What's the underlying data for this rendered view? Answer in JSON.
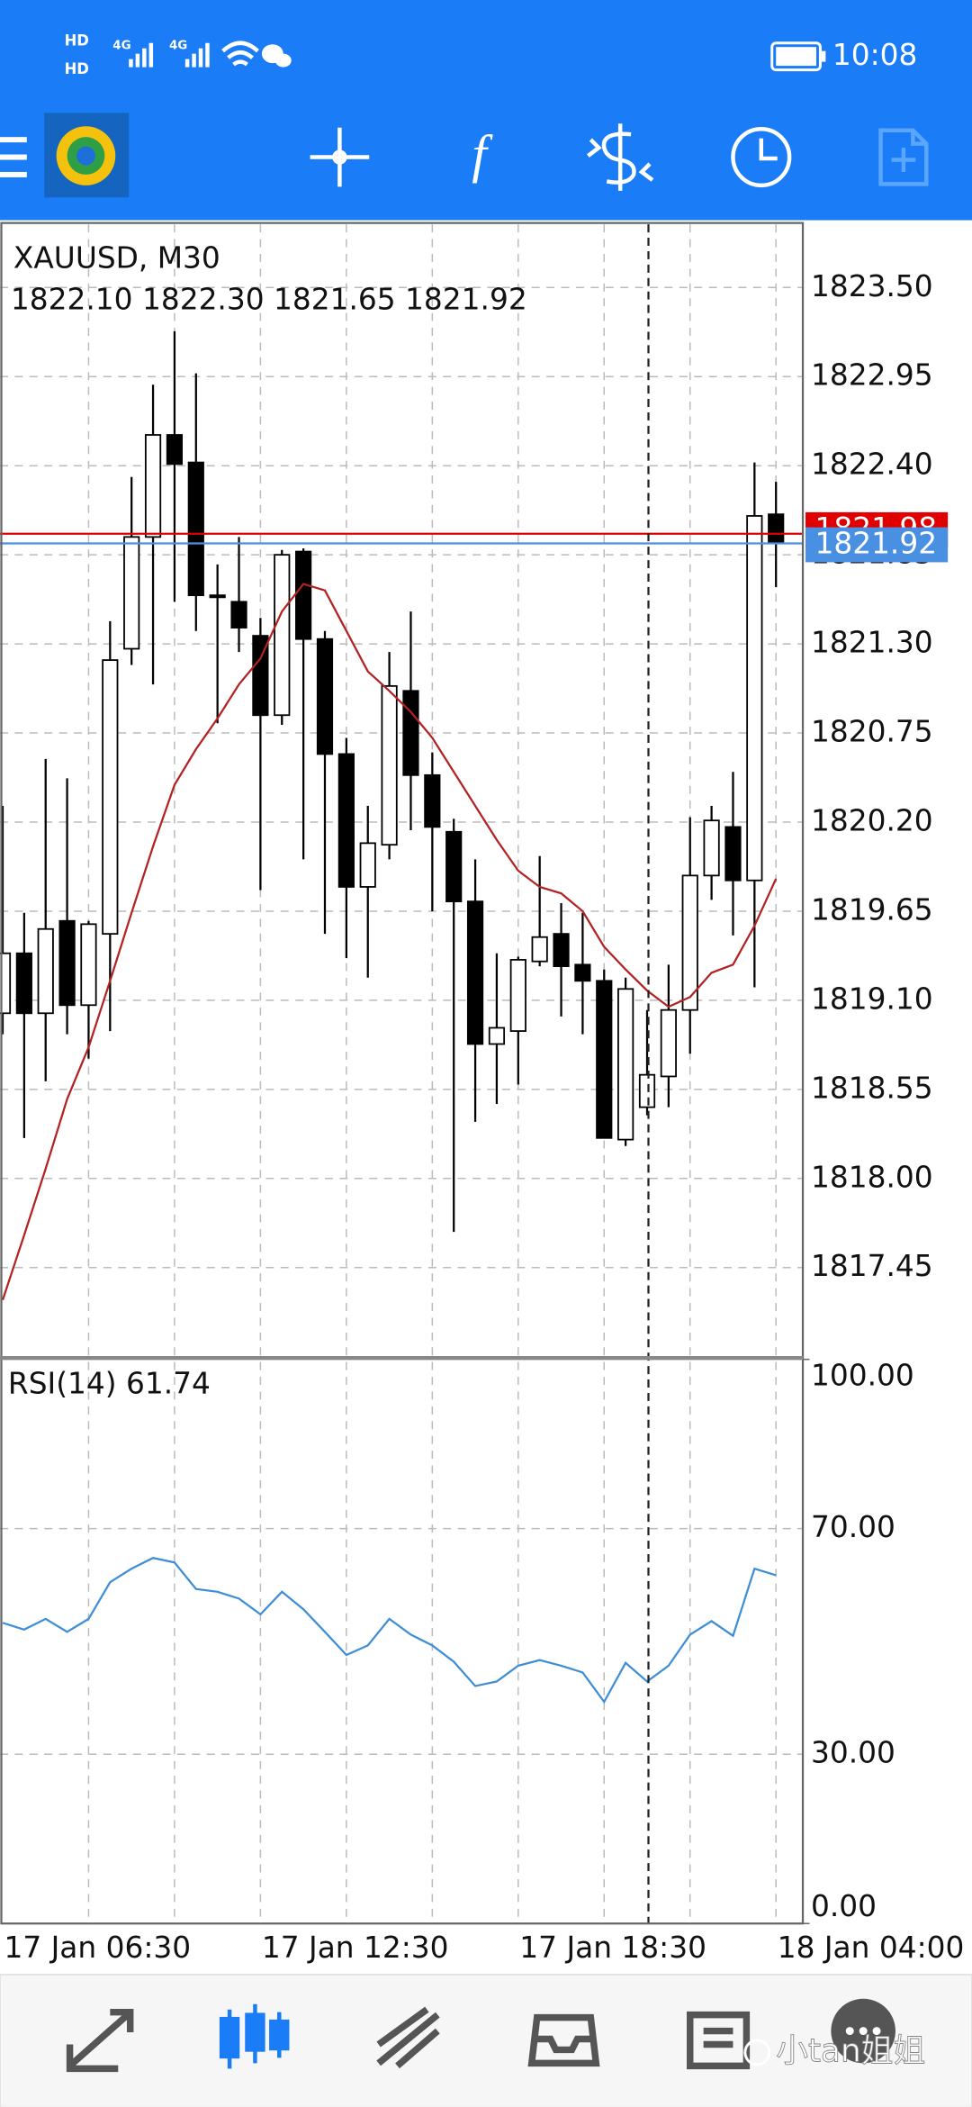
{
  "status_bar": {
    "sim1": "HD",
    "sim2": "HD",
    "net1": "4G",
    "net2": "4G",
    "time": "10:08"
  },
  "toolbar": {
    "indicators_icon": "f"
  },
  "chart_data": [
    {
      "type": "candlestick",
      "title": "XAUUSD, M30",
      "ohlc_text": "1822.10 1822.30 1821.65 1821.92",
      "categories": [
        "17 Jan 06:30",
        null,
        null,
        null,
        null,
        null,
        null,
        null,
        null,
        null,
        null,
        null,
        "17 Jan 12:30",
        null,
        null,
        null,
        null,
        null,
        null,
        null,
        null,
        null,
        null,
        null,
        "17 Jan 18:30",
        null,
        null,
        null,
        null,
        null,
        null,
        null,
        null,
        null,
        null,
        null,
        "18 Jan 04:00"
      ],
      "open": [
        1819.02,
        1819.39,
        1819.02,
        1819.59,
        1819.07,
        1819.51,
        1821.27,
        1821.96,
        1822.59,
        1822.42,
        1821.6,
        1821.56,
        1821.35,
        1820.86,
        1821.87,
        1821.33,
        1820.62,
        1819.8,
        1820.06,
        1821.01,
        1820.49,
        1820.14,
        1819.71,
        1818.83,
        1818.91,
        1819.34,
        1819.51,
        1819.32,
        1819.22,
        1818.24,
        1818.44,
        1818.63,
        1819.04,
        1819.87,
        1820.17,
        1819.84,
        1822.1
      ],
      "high": [
        1820.3,
        1819.64,
        1820.59,
        1820.47,
        1819.59,
        1821.44,
        1822.33,
        1822.9,
        1823.23,
        1822.97,
        1821.79,
        1821.96,
        1821.46,
        1821.88,
        1821.89,
        1821.38,
        1820.72,
        1820.3,
        1821.25,
        1821.5,
        1820.63,
        1820.22,
        1819.97,
        1819.39,
        1819.37,
        1819.99,
        1819.7,
        1819.64,
        1819.29,
        1819.24,
        1819.04,
        1819.32,
        1820.23,
        1820.3,
        1820.51,
        1822.42,
        1822.3
      ],
      "low": [
        1818.89,
        1818.25,
        1818.6,
        1818.89,
        1818.74,
        1818.91,
        1821.17,
        1821.05,
        1821.56,
        1821.38,
        1820.81,
        1821.25,
        1819.78,
        1820.8,
        1819.97,
        1819.51,
        1819.36,
        1819.24,
        1819.97,
        1820.15,
        1819.65,
        1817.67,
        1818.35,
        1818.46,
        1818.58,
        1819.31,
        1819.0,
        1818.89,
        1818.25,
        1818.2,
        1818.39,
        1818.44,
        1818.77,
        1819.72,
        1819.5,
        1819.18,
        1821.65
      ],
      "close": [
        1819.39,
        1819.02,
        1819.54,
        1819.07,
        1819.57,
        1821.2,
        1821.96,
        1822.59,
        1822.41,
        1821.6,
        1821.59,
        1821.4,
        1820.86,
        1821.85,
        1821.33,
        1820.62,
        1819.8,
        1820.07,
        1821.04,
        1820.49,
        1820.17,
        1819.71,
        1818.83,
        1818.93,
        1819.35,
        1819.49,
        1819.31,
        1819.22,
        1818.25,
        1819.17,
        1818.64,
        1819.04,
        1819.87,
        1820.21,
        1819.84,
        1822.09,
        1821.92
      ],
      "up_color": "#ffffff",
      "down_color": "#000000",
      "moving_average": {
        "color": "#b22222",
        "values": [
          1817.25,
          1817.65,
          1818.06,
          1818.49,
          1818.81,
          1819.22,
          1819.64,
          1820.05,
          1820.43,
          1820.65,
          1820.84,
          1821.05,
          1821.21,
          1821.5,
          1821.67,
          1821.63,
          1821.38,
          1821.13,
          1821.01,
          1820.88,
          1820.72,
          1820.51,
          1820.3,
          1820.09,
          1819.9,
          1819.8,
          1819.76,
          1819.65,
          1819.43,
          1819.29,
          1819.16,
          1819.06,
          1819.12,
          1819.27,
          1819.32,
          1819.56,
          1819.85
        ]
      },
      "ask": {
        "value": 1821.98,
        "label": "1821.98",
        "color": "#e00000"
      },
      "bid": {
        "value": 1821.92,
        "label": "1821.92",
        "color": "#4a90e2"
      },
      "ylim": [
        1816.9,
        1823.89
      ],
      "yticks": [
        {
          "value": 1823.5,
          "label": "1823.50"
        },
        1822.95,
        {
          "value": 1822.4,
          "label": "1822.40"
        },
        1821.85,
        {
          "value": 1821.3,
          "label": "1821.30"
        },
        1820.75,
        {
          "value": 1820.2,
          "label": "1820.20"
        },
        1819.65,
        {
          "value": 1819.1,
          "label": "1819.10"
        },
        1818.55,
        {
          "value": 1818.0,
          "label": "1818.00"
        },
        1817.45
      ],
      "grid": true
    },
    {
      "type": "line",
      "title": "RSI(14) 61.74",
      "color": "#3d8ed6",
      "values": [
        53.3,
        52.1,
        54.0,
        51.7,
        54.0,
        60.5,
        62.9,
        64.8,
        64.0,
        59.3,
        58.8,
        57.6,
        54.8,
        58.8,
        55.7,
        51.7,
        47.6,
        49.3,
        54.0,
        51.2,
        49.3,
        46.4,
        42.1,
        42.9,
        45.7,
        46.7,
        45.7,
        44.5,
        39.3,
        46.2,
        42.9,
        45.7,
        51.2,
        53.6,
        51.0,
        62.9,
        61.74
      ],
      "ylim": [
        0,
        100
      ],
      "yticks": [
        {
          "value": 100,
          "label": "100.00"
        },
        {
          "value": 70,
          "label": "70.00"
        },
        {
          "value": 30,
          "label": "30.00"
        },
        {
          "value": 0,
          "label": "0.00"
        }
      ],
      "grid": true
    }
  ],
  "watermark": "小tan姐姐"
}
